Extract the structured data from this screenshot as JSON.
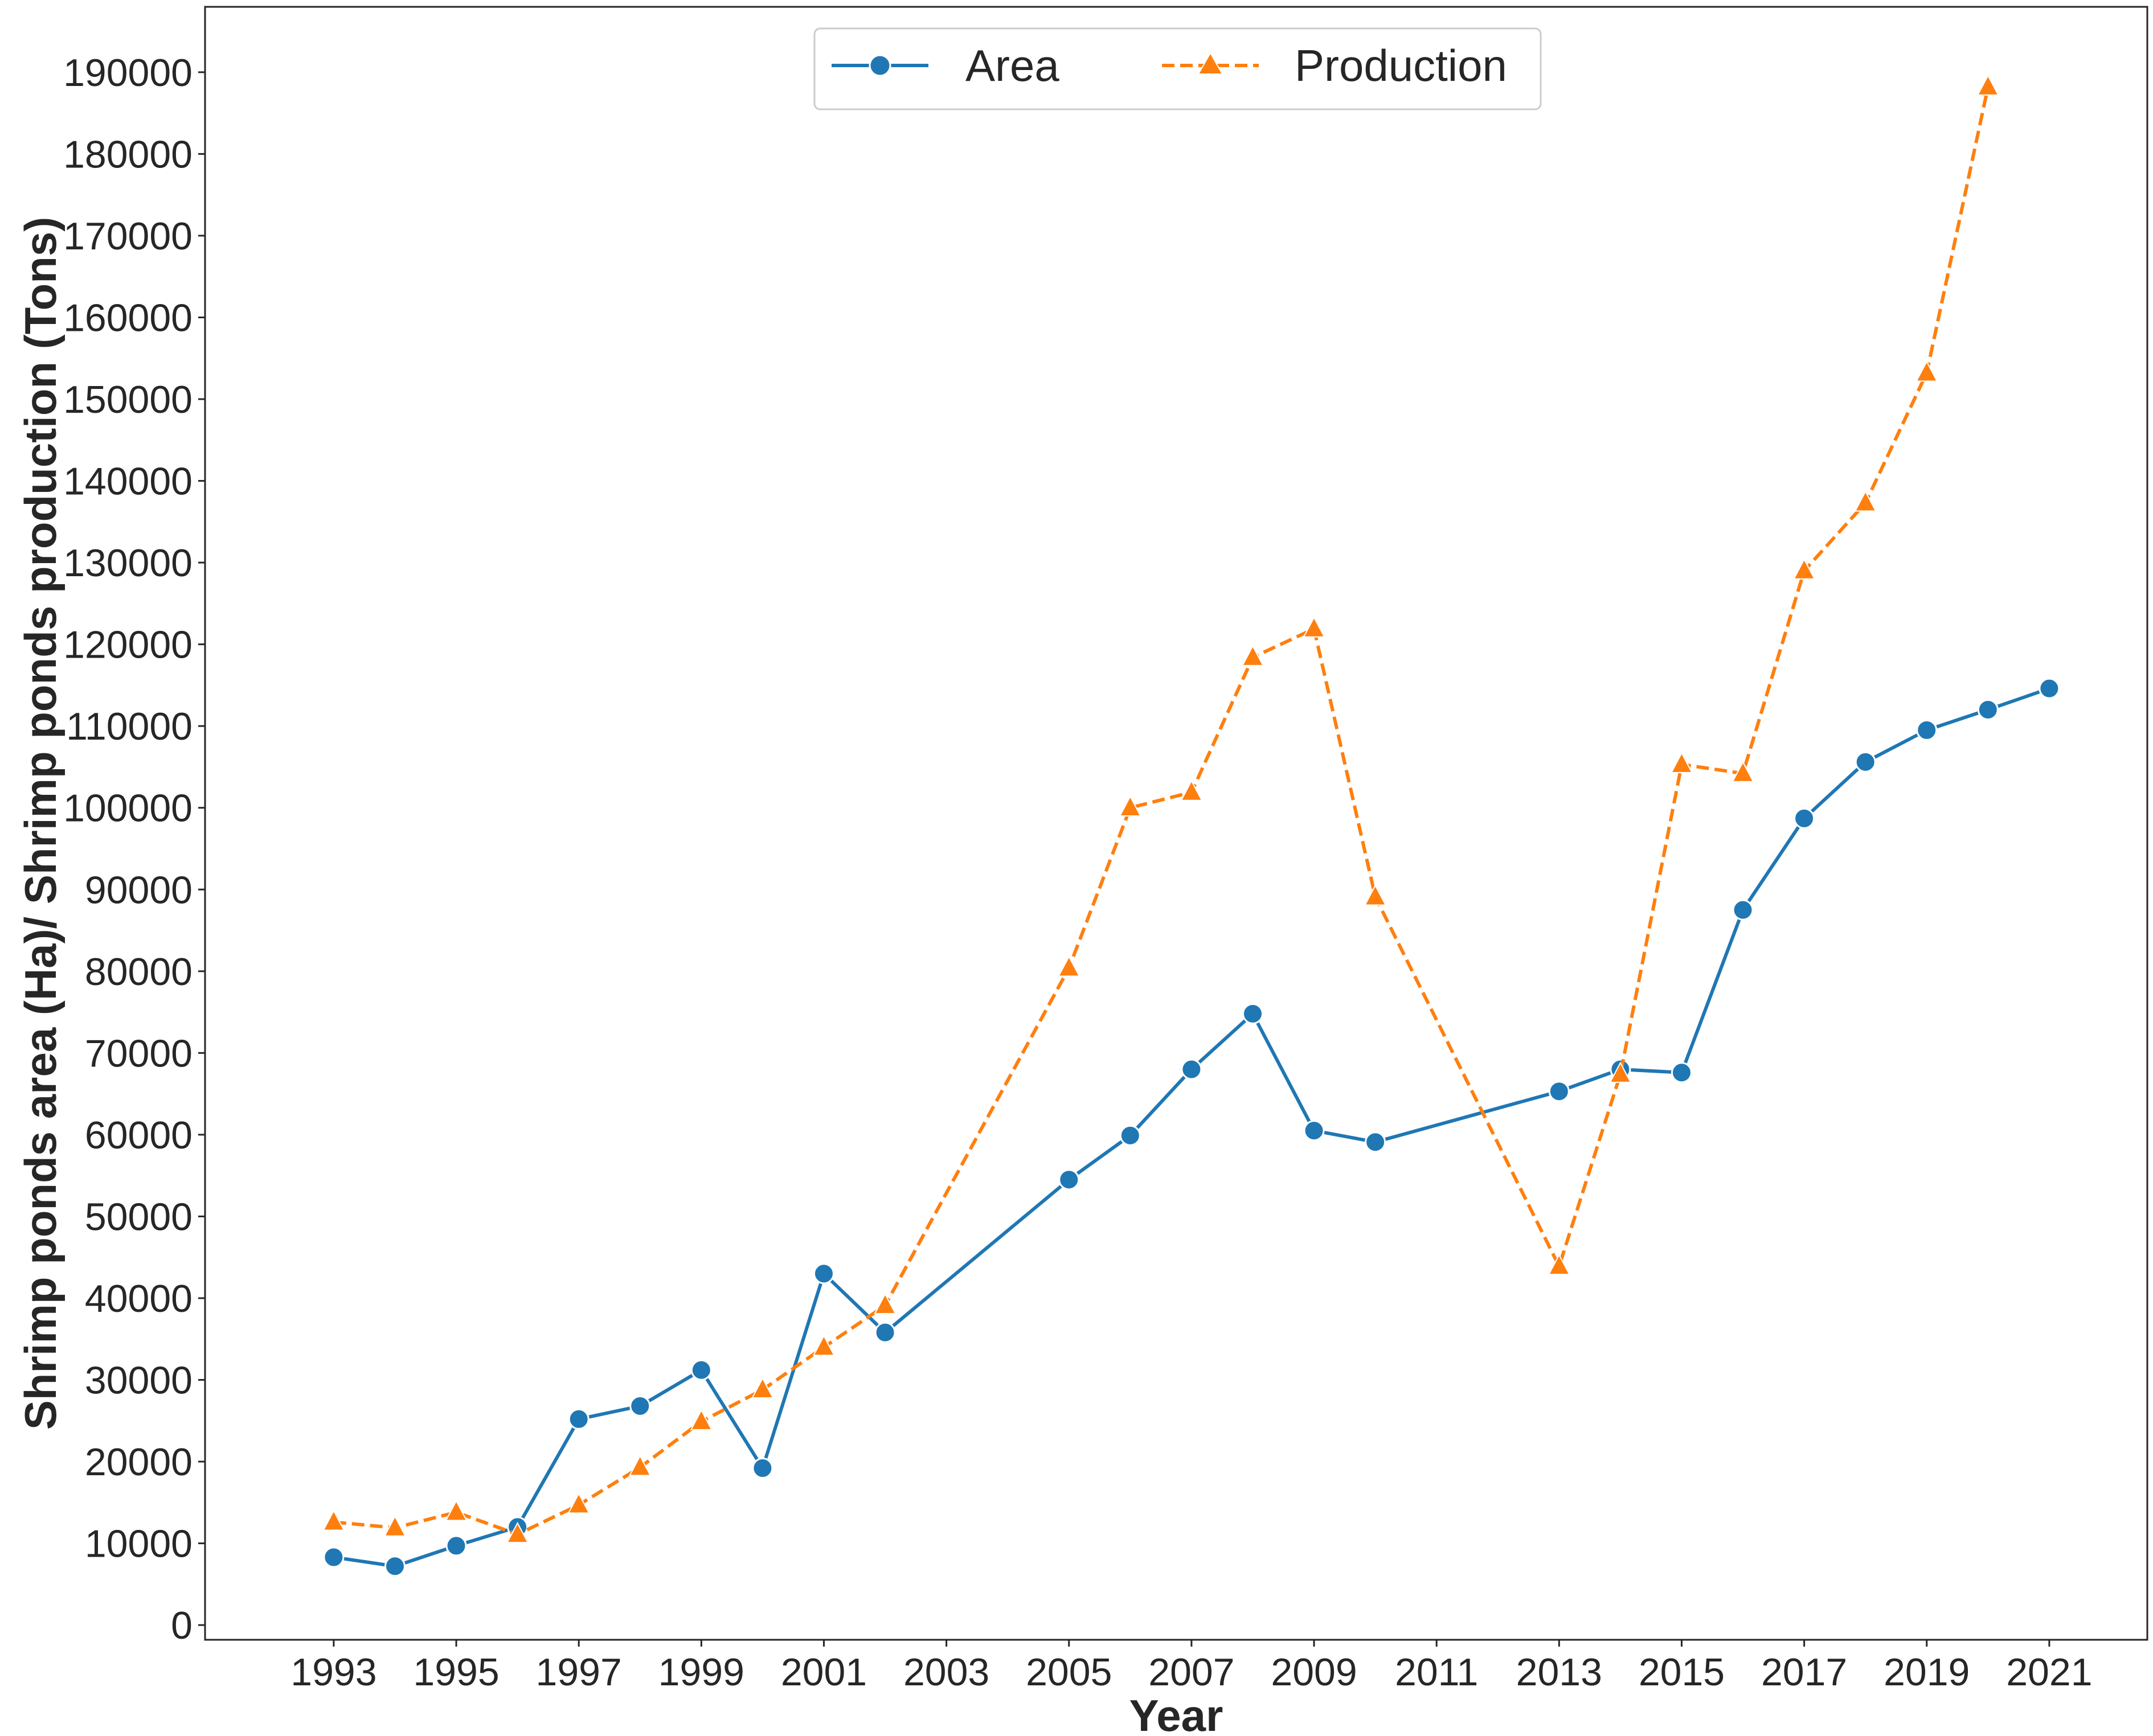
{
  "chart_data": {
    "type": "line",
    "title": "",
    "xlabel": "Year",
    "ylabel": "Shrimp ponds area (Ha)/ Shrimp ponds production (Tons)",
    "xlim": [
      1990.9,
      2022.6
    ],
    "ylim": [
      -1800,
      198000
    ],
    "x_ticks": [
      "1993",
      "1995",
      "1997",
      "1999",
      "2001",
      "2003",
      "2005",
      "2007",
      "2009",
      "2011",
      "2013",
      "2015",
      "2017",
      "2019",
      "2021"
    ],
    "y_ticks": [
      "0",
      "10000",
      "20000",
      "30000",
      "40000",
      "50000",
      "60000",
      "70000",
      "80000",
      "90000",
      "100000",
      "110000",
      "120000",
      "130000",
      "140000",
      "150000",
      "160000",
      "170000",
      "180000",
      "190000"
    ],
    "grid": false,
    "legend_position": "top-center",
    "series": [
      {
        "name": "Area",
        "color": "#1f77b4",
        "marker": "circle",
        "linestyle": "solid",
        "points": [
          [
            1993,
            8300
          ],
          [
            1994,
            7200
          ],
          [
            1995,
            9700
          ],
          [
            1996,
            12000
          ],
          [
            1997,
            25200
          ],
          [
            1998,
            26800
          ],
          [
            1999,
            31200
          ],
          [
            2000,
            19200
          ],
          [
            2001,
            43000
          ],
          [
            2002,
            35800
          ],
          [
            2005,
            54500
          ],
          [
            2006,
            59900
          ],
          [
            2007,
            68000
          ],
          [
            2008,
            74800
          ],
          [
            2009,
            60500
          ],
          [
            2010,
            59100
          ],
          [
            2013,
            65300
          ],
          [
            2014,
            68000
          ],
          [
            2015,
            67600
          ],
          [
            2016,
            87500
          ],
          [
            2017,
            98700
          ],
          [
            2018,
            105600
          ],
          [
            2019,
            109500
          ],
          [
            2020,
            112000
          ],
          [
            2021,
            114600
          ]
        ]
      },
      {
        "name": "Production",
        "color": "#ff7f0e",
        "marker": "triangle",
        "linestyle": "dashed",
        "points": [
          [
            1993,
            12600
          ],
          [
            1994,
            11900
          ],
          [
            1995,
            13800
          ],
          [
            1996,
            11100
          ],
          [
            1997,
            14700
          ],
          [
            1998,
            19300
          ],
          [
            1999,
            24900
          ],
          [
            2000,
            28800
          ],
          [
            2001,
            34000
          ],
          [
            2002,
            39100
          ],
          [
            2005,
            80400
          ],
          [
            2006,
            100000
          ],
          [
            2007,
            101900
          ],
          [
            2008,
            118400
          ],
          [
            2009,
            121900
          ],
          [
            2010,
            89100
          ],
          [
            2013,
            43900
          ],
          [
            2014,
            67400
          ],
          [
            2015,
            105300
          ],
          [
            2016,
            104200
          ],
          [
            2017,
            129000
          ],
          [
            2018,
            137300
          ],
          [
            2019,
            153200
          ],
          [
            2020,
            188200
          ]
        ]
      }
    ]
  }
}
